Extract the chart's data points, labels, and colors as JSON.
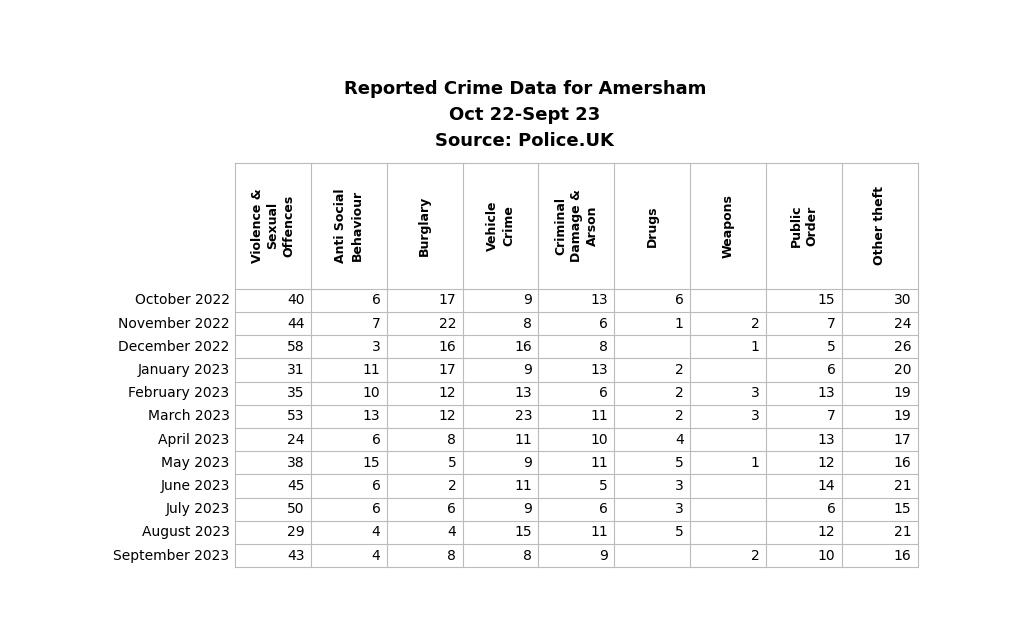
{
  "title_lines": [
    "Reported Crime Data for Amersham",
    "Oct 22-Sept 23",
    "Source: Police.UK"
  ],
  "col_headers": [
    "Violence &\nSexual\nOffences",
    "Anti Social\nBehaviour",
    "Burglary",
    "Vehicle\nCrime",
    "Criminal\nDamage &\nArson",
    "Drugs",
    "Weapons",
    "Public\nOrder",
    "Other theft"
  ],
  "row_labels": [
    "October 2022",
    "November 2022",
    "December 2022",
    "January 2023",
    "February 2023",
    "March 2023",
    "April 2023",
    "May 2023",
    "June 2023",
    "July 2023",
    "August 2023",
    "September 2023"
  ],
  "data": [
    [
      40,
      6,
      17,
      9,
      13,
      6,
      "",
      15,
      30
    ],
    [
      44,
      7,
      22,
      8,
      6,
      1,
      2,
      7,
      24
    ],
    [
      58,
      3,
      16,
      16,
      8,
      "",
      1,
      5,
      26
    ],
    [
      31,
      11,
      17,
      9,
      13,
      2,
      "",
      6,
      20
    ],
    [
      35,
      10,
      12,
      13,
      6,
      2,
      3,
      13,
      19
    ],
    [
      53,
      13,
      12,
      23,
      11,
      2,
      3,
      7,
      19
    ],
    [
      24,
      6,
      8,
      11,
      10,
      4,
      "",
      13,
      17
    ],
    [
      38,
      15,
      5,
      9,
      11,
      5,
      1,
      12,
      16
    ],
    [
      45,
      6,
      2,
      11,
      5,
      3,
      "",
      14,
      21
    ],
    [
      50,
      6,
      6,
      9,
      6,
      3,
      "",
      6,
      15
    ],
    [
      29,
      4,
      4,
      15,
      11,
      5,
      "",
      12,
      21
    ],
    [
      43,
      4,
      8,
      8,
      9,
      "",
      2,
      10,
      16
    ]
  ],
  "bg_color": "#ffffff",
  "grid_color": "#bbbbbb",
  "text_color": "#000000",
  "title_fontsize": 13,
  "header_fontsize": 9,
  "cell_fontsize": 10,
  "row_label_fontsize": 10
}
